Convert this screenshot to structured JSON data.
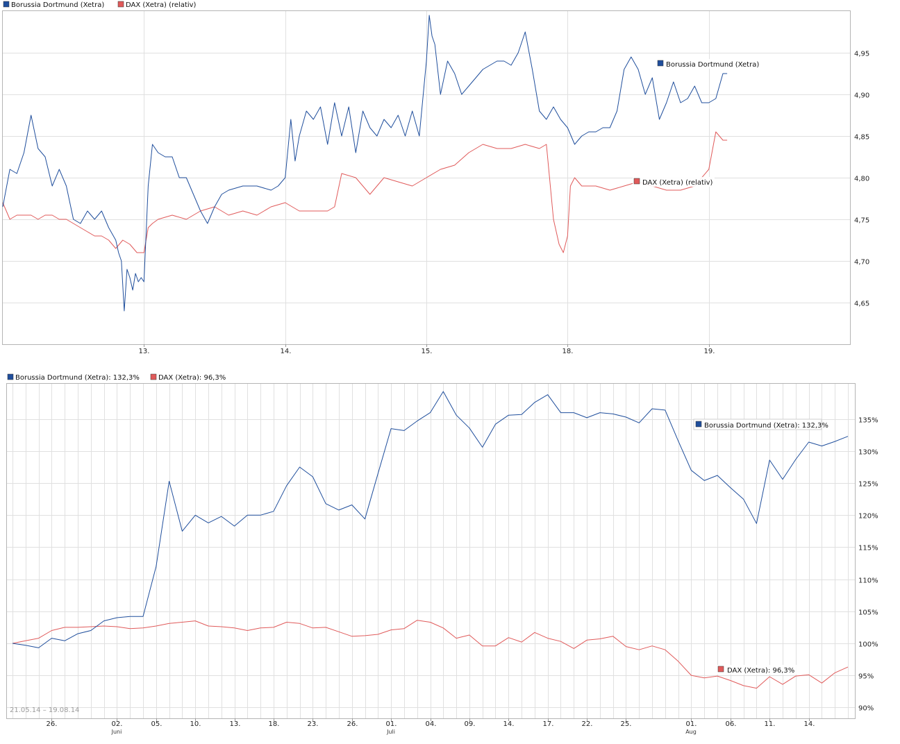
{
  "chart_data": [
    {
      "type": "line",
      "legend": [
        "Borussia Dortmund (Xetra)",
        "DAX (Xetra) (relativ)"
      ],
      "x_tick_labels": [
        "13.",
        "14.",
        "15.",
        "18.",
        "19."
      ],
      "y_tick_labels": [
        "4,65",
        "4,70",
        "4,75",
        "4,80",
        "4,85",
        "4,90",
        "4,95"
      ],
      "y_ticks": [
        4.65,
        4.7,
        4.75,
        4.8,
        4.85,
        4.9,
        4.95
      ],
      "ylim": [
        4.6,
        5.0
      ],
      "x_range": [
        0,
        6
      ],
      "x_tick_positions": [
        1,
        2,
        3,
        4,
        5
      ],
      "grid": true,
      "legend_position": "top-left",
      "end_labels": [
        "Borussia Dortmund (Xetra)",
        "DAX (Xetra) (relativ)"
      ],
      "series": [
        {
          "name": "Borussia Dortmund (Xetra)",
          "color": "#1f4e9c",
          "x": [
            0,
            0.05,
            0.1,
            0.15,
            0.2,
            0.25,
            0.3,
            0.35,
            0.4,
            0.45,
            0.5,
            0.55,
            0.6,
            0.65,
            0.7,
            0.75,
            0.8,
            0.82,
            0.84,
            0.86,
            0.88,
            0.9,
            0.92,
            0.94,
            0.96,
            0.98,
            1.0,
            1.03,
            1.06,
            1.1,
            1.15,
            1.2,
            1.25,
            1.3,
            1.35,
            1.4,
            1.45,
            1.5,
            1.55,
            1.6,
            1.7,
            1.8,
            1.9,
            1.95,
            2.0,
            2.04,
            2.07,
            2.1,
            2.15,
            2.2,
            2.25,
            2.3,
            2.35,
            2.4,
            2.45,
            2.5,
            2.55,
            2.6,
            2.65,
            2.7,
            2.75,
            2.8,
            2.85,
            2.9,
            2.95,
            3.0,
            3.02,
            3.04,
            3.06,
            3.1,
            3.15,
            3.2,
            3.25,
            3.3,
            3.35,
            3.4,
            3.45,
            3.5,
            3.55,
            3.6,
            3.65,
            3.7,
            3.75,
            3.8,
            3.85,
            3.9,
            3.95,
            4.0,
            4.05,
            4.1,
            4.15,
            4.2,
            4.25,
            4.3,
            4.35,
            4.4,
            4.45,
            4.5,
            4.55,
            4.6,
            4.65,
            4.7,
            4.75,
            4.8,
            4.85,
            4.9,
            4.95,
            5.0,
            5.05,
            5.1,
            5.13
          ],
          "values": [
            4.765,
            4.81,
            4.805,
            4.83,
            4.875,
            4.835,
            4.825,
            4.79,
            4.81,
            4.79,
            4.75,
            4.745,
            4.76,
            4.75,
            4.76,
            4.74,
            4.725,
            4.71,
            4.7,
            4.64,
            4.69,
            4.68,
            4.665,
            4.685,
            4.675,
            4.68,
            4.675,
            4.79,
            4.84,
            4.83,
            4.825,
            4.825,
            4.8,
            4.8,
            4.78,
            4.76,
            4.745,
            4.765,
            4.78,
            4.785,
            4.79,
            4.79,
            4.785,
            4.79,
            4.8,
            4.87,
            4.82,
            4.85,
            4.88,
            4.87,
            4.885,
            4.84,
            4.89,
            4.85,
            4.885,
            4.83,
            4.88,
            4.86,
            4.85,
            4.87,
            4.86,
            4.875,
            4.85,
            4.88,
            4.85,
            4.94,
            4.995,
            4.97,
            4.96,
            4.9,
            4.94,
            4.925,
            4.9,
            4.91,
            4.92,
            4.93,
            4.935,
            4.94,
            4.94,
            4.935,
            4.95,
            4.975,
            4.93,
            4.88,
            4.87,
            4.885,
            4.87,
            4.86,
            4.84,
            4.85,
            4.855,
            4.855,
            4.86,
            4.86,
            4.88,
            4.93,
            4.945,
            4.93,
            4.9,
            4.92,
            4.87,
            4.89,
            4.915,
            4.89,
            4.895,
            4.91,
            4.89,
            4.89,
            4.895,
            4.925,
            4.925
          ]
        },
        {
          "name": "DAX (Xetra) (relativ)",
          "color": "#e05a5a",
          "x": [
            0,
            0.05,
            0.1,
            0.15,
            0.2,
            0.25,
            0.3,
            0.35,
            0.4,
            0.45,
            0.5,
            0.55,
            0.6,
            0.65,
            0.7,
            0.75,
            0.8,
            0.85,
            0.9,
            0.95,
            1.0,
            1.03,
            1.06,
            1.1,
            1.2,
            1.3,
            1.4,
            1.5,
            1.6,
            1.7,
            1.8,
            1.9,
            2.0,
            2.05,
            2.1,
            2.2,
            2.3,
            2.35,
            2.4,
            2.5,
            2.6,
            2.7,
            2.8,
            2.9,
            3.0,
            3.1,
            3.2,
            3.3,
            3.4,
            3.5,
            3.6,
            3.7,
            3.8,
            3.85,
            3.9,
            3.94,
            3.97,
            4.0,
            4.02,
            4.05,
            4.1,
            4.2,
            4.3,
            4.4,
            4.5,
            4.6,
            4.7,
            4.8,
            4.9,
            5.0,
            5.05,
            5.1,
            5.13
          ],
          "values": [
            4.77,
            4.75,
            4.755,
            4.755,
            4.755,
            4.75,
            4.755,
            4.755,
            4.75,
            4.75,
            4.745,
            4.74,
            4.735,
            4.73,
            4.73,
            4.725,
            4.715,
            4.725,
            4.72,
            4.71,
            4.71,
            4.74,
            4.745,
            4.75,
            4.755,
            4.75,
            4.76,
            4.765,
            4.755,
            4.76,
            4.755,
            4.765,
            4.77,
            4.765,
            4.76,
            4.76,
            4.76,
            4.765,
            4.805,
            4.8,
            4.78,
            4.8,
            4.795,
            4.79,
            4.8,
            4.81,
            4.815,
            4.83,
            4.84,
            4.835,
            4.835,
            4.84,
            4.835,
            4.84,
            4.75,
            4.72,
            4.71,
            4.73,
            4.79,
            4.8,
            4.79,
            4.79,
            4.785,
            4.79,
            4.795,
            4.79,
            4.785,
            4.785,
            4.79,
            4.81,
            4.855,
            4.845,
            4.845
          ]
        }
      ]
    },
    {
      "type": "line",
      "legend": [
        "Borussia Dortmund (Xetra): 132,3%",
        "DAX (Xetra): 96,3%"
      ],
      "range_label": "21.05.14 – 19.08.14",
      "x_tick_labels": [
        "26.",
        "02.",
        "05.",
        "10.",
        "13.",
        "18.",
        "23.",
        "26.",
        "01.",
        "04.",
        "09.",
        "14.",
        "17.",
        "22.",
        "25.",
        "01.",
        "06.",
        "11.",
        "14."
      ],
      "x_tick_positions": [
        3,
        8,
        11,
        14,
        17,
        20,
        23,
        26,
        29,
        32,
        35,
        38,
        41,
        44,
        47,
        52,
        55,
        58,
        61
      ],
      "x_month_labels": [
        {
          "label": "Juni",
          "x": 8
        },
        {
          "label": "Juli",
          "x": 29
        },
        {
          "label": "Aug",
          "x": 52
        }
      ],
      "x_range": [
        0,
        64
      ],
      "y_tick_labels": [
        "90%",
        "95%",
        "100%",
        "105%",
        "110%",
        "115%",
        "120%",
        "125%",
        "130%",
        "135%"
      ],
      "y_ticks": [
        90,
        95,
        100,
        105,
        110,
        115,
        120,
        125,
        130,
        135
      ],
      "ylim": [
        88.3,
        140.5
      ],
      "grid": true,
      "legend_position": "top-left",
      "end_labels": [
        "Borussia Dortmund (Xetra): 132,3%",
        "DAX (Xetra): 96,3%"
      ],
      "series": [
        {
          "name": "Borussia Dortmund (Xetra)",
          "color": "#1f4e9c",
          "values": [
            100,
            99.7,
            99.3,
            100.8,
            100.4,
            101.5,
            102,
            103.5,
            104,
            104.2,
            104.2,
            112,
            125.3,
            117.5,
            120,
            118.8,
            119.8,
            118.3,
            120,
            120,
            120.6,
            124.6,
            127.5,
            126,
            121.8,
            120.8,
            121.6,
            119.4,
            126.5,
            133.5,
            133.2,
            134.7,
            136,
            139.3,
            135.6,
            133.6,
            130.6,
            134.2,
            135.6,
            135.7,
            137.6,
            138.8,
            136,
            136,
            135.2,
            136,
            135.8,
            135.3,
            134.4,
            136.6,
            136.4,
            131.6,
            127,
            125.4,
            126.2,
            124.3,
            122.5,
            118.7,
            128.6,
            125.6,
            128.7,
            131.4,
            130.8,
            131.5,
            132.3
          ]
        },
        {
          "name": "DAX (Xetra)",
          "color": "#e05a5a",
          "values": [
            100,
            100.4,
            100.8,
            102,
            102.5,
            102.5,
            102.6,
            102.7,
            102.6,
            102.3,
            102.4,
            102.7,
            103.1,
            103.3,
            103.5,
            102.7,
            102.6,
            102.4,
            102,
            102.4,
            102.5,
            103.3,
            103.1,
            102.4,
            102.5,
            101.8,
            101.1,
            101.2,
            101.4,
            102.1,
            102.3,
            103.6,
            103.3,
            102.4,
            100.8,
            101.3,
            99.6,
            99.6,
            100.9,
            100.2,
            101.7,
            100.8,
            100.3,
            99.2,
            100.5,
            100.7,
            101.1,
            99.5,
            99,
            99.6,
            99,
            97.2,
            95,
            94.6,
            94.9,
            94.2,
            93.4,
            93,
            94.8,
            93.6,
            94.9,
            95.1,
            93.8,
            95.4,
            96.3
          ]
        }
      ]
    }
  ]
}
